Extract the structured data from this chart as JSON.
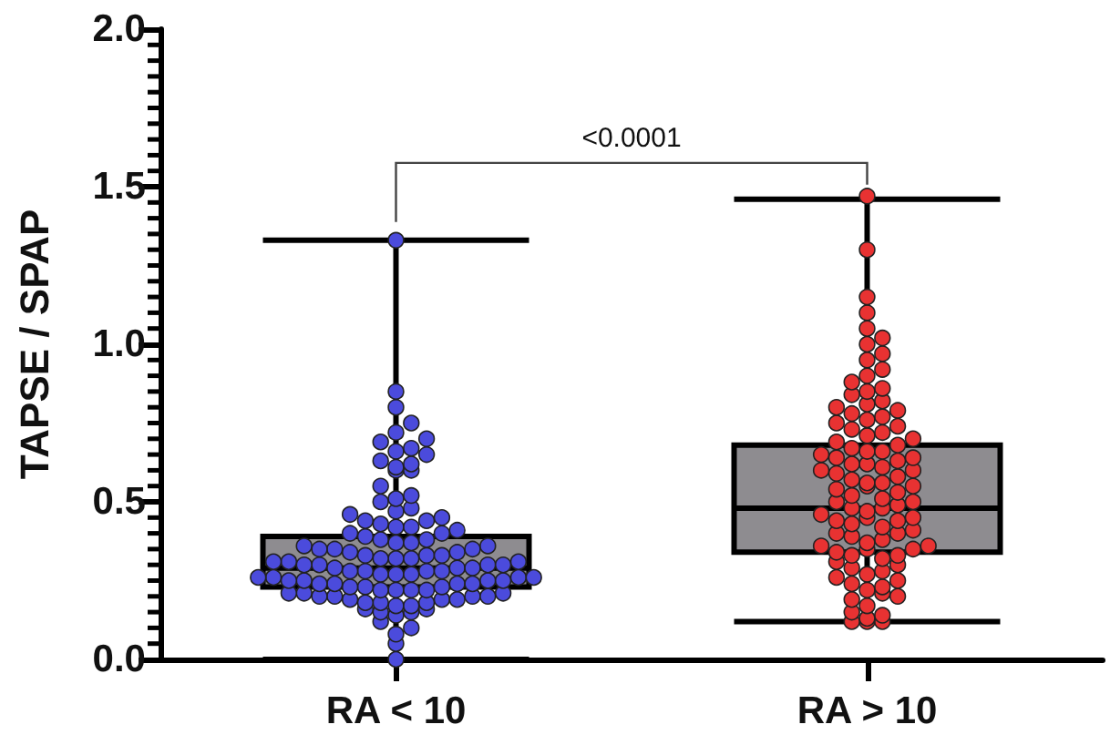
{
  "chart_data": {
    "type": "box",
    "ylabel": "TAPSE / SPAP",
    "categories": [
      "RA < 10",
      "RA > 10"
    ],
    "ylim": [
      0,
      2
    ],
    "yticks": [
      {
        "value": 0,
        "label": "0.0"
      },
      {
        "value": 0.05,
        "label": null
      },
      {
        "value": 0.1,
        "label": null
      },
      {
        "value": 0.15,
        "label": null
      },
      {
        "value": 0.2,
        "label": null
      },
      {
        "value": 0.25,
        "label": null
      },
      {
        "value": 0.3,
        "label": null
      },
      {
        "value": 0.35,
        "label": null
      },
      {
        "value": 0.4,
        "label": null
      },
      {
        "value": 0.45,
        "label": null
      },
      {
        "value": 0.5,
        "label": "0.5"
      },
      {
        "value": 0.55,
        "label": null
      },
      {
        "value": 0.6,
        "label": null
      },
      {
        "value": 0.65,
        "label": null
      },
      {
        "value": 0.7,
        "label": null
      },
      {
        "value": 0.75,
        "label": null
      },
      {
        "value": 0.8,
        "label": null
      },
      {
        "value": 0.85,
        "label": null
      },
      {
        "value": 0.9,
        "label": null
      },
      {
        "value": 0.95,
        "label": null
      },
      {
        "value": 1,
        "label": "1.0"
      },
      {
        "value": 1.05,
        "label": null
      },
      {
        "value": 1.1,
        "label": null
      },
      {
        "value": 1.15,
        "label": null
      },
      {
        "value": 1.2,
        "label": null
      },
      {
        "value": 1.25,
        "label": null
      },
      {
        "value": 1.3,
        "label": null
      },
      {
        "value": 1.35,
        "label": null
      },
      {
        "value": 1.4,
        "label": null
      },
      {
        "value": 1.45,
        "label": null
      },
      {
        "value": 1.5,
        "label": "1.5"
      },
      {
        "value": 1.55,
        "label": null
      },
      {
        "value": 1.6,
        "label": null
      },
      {
        "value": 1.65,
        "label": null
      },
      {
        "value": 1.7,
        "label": null
      },
      {
        "value": 1.75,
        "label": null
      },
      {
        "value": 1.8,
        "label": null
      },
      {
        "value": 1.85,
        "label": null
      },
      {
        "value": 1.9,
        "label": null
      },
      {
        "value": 1.95,
        "label": null
      },
      {
        "value": 2,
        "label": "2.0"
      }
    ],
    "boxes": [
      {
        "low": 0,
        "q1": 0.23,
        "median": 0.29,
        "q3": 0.39,
        "high": 1.33
      },
      {
        "low": 0.12,
        "q1": 0.34,
        "median": 0.48,
        "q3": 0.68,
        "high": 1.46
      }
    ],
    "color": "#8e8c90",
    "series": [
      {
        "type": "scatter",
        "color": "#4b4bdc",
        "x": [
          "RA < 10",
          "RA < 10",
          "RA < 10",
          "RA < 10",
          "RA < 10",
          "RA < 10",
          "RA < 10",
          "RA < 10",
          "RA < 10",
          "RA < 10",
          "RA < 10",
          "RA < 10",
          "RA < 10",
          "RA < 10",
          "RA < 10",
          "RA < 10",
          "RA < 10",
          "RA < 10",
          "RA < 10",
          "RA < 10",
          "RA < 10",
          "RA < 10",
          "RA < 10",
          "RA < 10",
          "RA < 10",
          "RA < 10",
          "RA < 10",
          "RA < 10",
          "RA < 10",
          "RA < 10",
          "RA < 10",
          "RA < 10",
          "RA < 10",
          "RA < 10",
          "RA < 10",
          "RA < 10",
          "RA < 10",
          "RA < 10",
          "RA < 10",
          "RA < 10",
          "RA < 10",
          "RA < 10",
          "RA < 10",
          "RA < 10",
          "RA < 10",
          "RA < 10",
          "RA < 10",
          "RA < 10",
          "RA < 10",
          "RA < 10",
          "RA < 10",
          "RA < 10",
          "RA < 10",
          "RA < 10",
          "RA < 10",
          "RA < 10",
          "RA < 10",
          "RA < 10",
          "RA < 10",
          "RA < 10",
          "RA < 10",
          "RA < 10",
          "RA < 10",
          "RA < 10",
          "RA < 10",
          "RA < 10",
          "RA < 10",
          "RA < 10",
          "RA < 10",
          "RA < 10",
          "RA < 10",
          "RA < 10",
          "RA < 10",
          "RA < 10",
          "RA < 10",
          "RA < 10",
          "RA < 10",
          "RA < 10",
          "RA < 10",
          "RA < 10",
          "RA < 10",
          "RA < 10",
          "RA < 10",
          "RA < 10",
          "RA < 10",
          "RA < 10",
          "RA < 10",
          "RA < 10",
          "RA < 10",
          "RA < 10",
          "RA < 10",
          "RA < 10",
          "RA < 10",
          "RA < 10",
          "RA < 10",
          "RA < 10",
          "RA < 10",
          "RA < 10",
          "RA < 10",
          "RA < 10",
          "RA < 10",
          "RA < 10",
          "RA < 10",
          "RA < 10",
          "RA < 10",
          "RA < 10",
          "RA < 10",
          "RA < 10",
          "RA < 10",
          "RA < 10"
        ],
        "values": [
          0,
          0.05,
          0.08,
          0.1,
          0.12,
          0.14,
          0.15,
          0.15,
          0.16,
          0.16,
          0.17,
          0.17,
          0.18,
          0.18,
          0.18,
          0.19,
          0.19,
          0.19,
          0.2,
          0.2,
          0.2,
          0.2,
          0.21,
          0.21,
          0.21,
          0.22,
          0.22,
          0.22,
          0.22,
          0.23,
          0.23,
          0.23,
          0.24,
          0.24,
          0.24,
          0.24,
          0.25,
          0.25,
          0.25,
          0.25,
          0.26,
          0.26,
          0.26,
          0.26,
          0.27,
          0.27,
          0.27,
          0.28,
          0.28,
          0.28,
          0.28,
          0.29,
          0.29,
          0.29,
          0.3,
          0.3,
          0.3,
          0.3,
          0.31,
          0.31,
          0.31,
          0.32,
          0.32,
          0.32,
          0.33,
          0.33,
          0.33,
          0.34,
          0.34,
          0.35,
          0.35,
          0.35,
          0.36,
          0.36,
          0.37,
          0.37,
          0.38,
          0.38,
          0.39,
          0.4,
          0.4,
          0.41,
          0.42,
          0.42,
          0.43,
          0.44,
          0.44,
          0.45,
          0.46,
          0.47,
          0.48,
          0.5,
          0.51,
          0.52,
          0.55,
          0.6,
          0.6,
          0.61,
          0.62,
          0.63,
          0.65,
          0.66,
          0.67,
          0.69,
          0.7,
          0.72,
          0.75,
          0.8,
          0.85,
          1.33
        ]
      },
      {
        "type": "scatter",
        "color": "#e83232",
        "x": [
          "RA > 10",
          "RA > 10",
          "RA > 10",
          "RA > 10",
          "RA > 10",
          "RA > 10",
          "RA > 10",
          "RA > 10",
          "RA > 10",
          "RA > 10",
          "RA > 10",
          "RA > 10",
          "RA > 10",
          "RA > 10",
          "RA > 10",
          "RA > 10",
          "RA > 10",
          "RA > 10",
          "RA > 10",
          "RA > 10",
          "RA > 10",
          "RA > 10",
          "RA > 10",
          "RA > 10",
          "RA > 10",
          "RA > 10",
          "RA > 10",
          "RA > 10",
          "RA > 10",
          "RA > 10",
          "RA > 10",
          "RA > 10",
          "RA > 10",
          "RA > 10",
          "RA > 10",
          "RA > 10",
          "RA > 10",
          "RA > 10",
          "RA > 10",
          "RA > 10",
          "RA > 10",
          "RA > 10",
          "RA > 10",
          "RA > 10",
          "RA > 10",
          "RA > 10",
          "RA > 10",
          "RA > 10",
          "RA > 10",
          "RA > 10",
          "RA > 10",
          "RA > 10",
          "RA > 10",
          "RA > 10",
          "RA > 10",
          "RA > 10",
          "RA > 10",
          "RA > 10",
          "RA > 10",
          "RA > 10",
          "RA > 10",
          "RA > 10",
          "RA > 10",
          "RA > 10",
          "RA > 10",
          "RA > 10",
          "RA > 10",
          "RA > 10",
          "RA > 10",
          "RA > 10",
          "RA > 10",
          "RA > 10",
          "RA > 10",
          "RA > 10",
          "RA > 10",
          "RA > 10",
          "RA > 10",
          "RA > 10",
          "RA > 10",
          "RA > 10",
          "RA > 10",
          "RA > 10",
          "RA > 10",
          "RA > 10",
          "RA > 10",
          "RA > 10",
          "RA > 10",
          "RA > 10",
          "RA > 10",
          "RA > 10",
          "RA > 10",
          "RA > 10",
          "RA > 10",
          "RA > 10",
          "RA > 10",
          "RA > 10",
          "RA > 10",
          "RA > 10",
          "RA > 10",
          "RA > 10"
        ],
        "values": [
          0.12,
          0.12,
          0.12,
          0.13,
          0.14,
          0.15,
          0.17,
          0.21,
          0.35,
          0.45,
          0.55,
          0.62,
          0.66,
          0.19,
          0.2,
          0.22,
          0.23,
          0.24,
          0.25,
          0.26,
          0.27,
          0.28,
          0.29,
          0.3,
          0.31,
          0.32,
          0.33,
          0.33,
          0.34,
          0.35,
          0.36,
          0.36,
          0.37,
          0.38,
          0.39,
          0.4,
          0.4,
          0.41,
          0.42,
          0.43,
          0.44,
          0.44,
          0.45,
          0.46,
          0.47,
          0.48,
          0.48,
          0.49,
          0.5,
          0.5,
          0.51,
          0.52,
          0.53,
          0.54,
          0.55,
          0.56,
          0.56,
          0.57,
          0.58,
          0.59,
          0.6,
          0.6,
          0.61,
          0.62,
          0.63,
          0.64,
          0.64,
          0.65,
          0.66,
          0.67,
          0.68,
          0.69,
          0.7,
          0.71,
          0.72,
          0.73,
          0.74,
          0.75,
          0.76,
          0.77,
          0.78,
          0.79,
          0.8,
          0.81,
          0.82,
          0.84,
          0.85,
          0.86,
          0.88,
          0.9,
          0.92,
          0.95,
          0.97,
          1.0,
          1.02,
          1.05,
          1.1,
          1.15,
          1.3,
          1.47
        ]
      }
    ],
    "annotations": [
      "<0.0001"
    ]
  }
}
